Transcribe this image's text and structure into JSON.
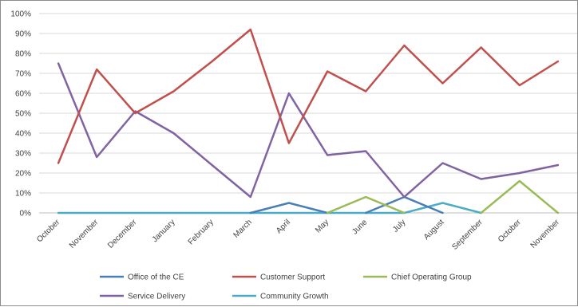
{
  "chart_data": {
    "type": "line",
    "categories": [
      "October",
      "November",
      "December",
      "January",
      "February",
      "March",
      "April",
      "May",
      "June",
      "July",
      "August",
      "September",
      "October",
      "November"
    ],
    "y_ticks": [
      "0%",
      "10%",
      "20%",
      "30%",
      "40%",
      "50%",
      "60%",
      "70%",
      "80%",
      "90%",
      "100%"
    ],
    "ylim": [
      0,
      100
    ],
    "grid": true,
    "legend_position": "bottom",
    "series": [
      {
        "name": "Office of the CE",
        "color": "#4a7fb5",
        "values": [
          null,
          null,
          null,
          null,
          null,
          0,
          5,
          0,
          null,
          null,
          null,
          null,
          null,
          null
        ]
      },
      {
        "name": "Customer Support",
        "color": "#c0504d",
        "values": [
          25,
          72,
          50,
          61,
          76,
          92,
          35,
          71,
          61,
          84,
          65,
          83,
          64,
          76
        ]
      },
      {
        "name": "Chief Operating Group",
        "color": "#9bbb59",
        "values": [
          null,
          null,
          null,
          null,
          null,
          null,
          null,
          0,
          8,
          0,
          null,
          0,
          16,
          0
        ]
      },
      {
        "name": "Service Delivery",
        "color": "#8064a2",
        "values": [
          75,
          28,
          51,
          40,
          24,
          8,
          60,
          29,
          31,
          8,
          25,
          17,
          20,
          24
        ]
      },
      {
        "name": "Community Growth",
        "color": "#4bacc6",
        "values": [
          0,
          0,
          0,
          0,
          0,
          0,
          0,
          0,
          0,
          0,
          5,
          0,
          null,
          null
        ]
      },
      {
        "name": "Office of the CE (2)",
        "color": "#4a7fb5",
        "values": [
          null,
          null,
          null,
          null,
          null,
          null,
          null,
          null,
          0,
          8,
          0,
          null,
          null,
          null
        ]
      }
    ],
    "legend": [
      {
        "label": "Office of the CE",
        "color": "#4a7fb5"
      },
      {
        "label": "Customer Support",
        "color": "#c0504d"
      },
      {
        "label": "Chief Operating Group",
        "color": "#9bbb59"
      },
      {
        "label": "Service Delivery",
        "color": "#8064a2"
      },
      {
        "label": "Community Growth",
        "color": "#4bacc6"
      }
    ]
  }
}
